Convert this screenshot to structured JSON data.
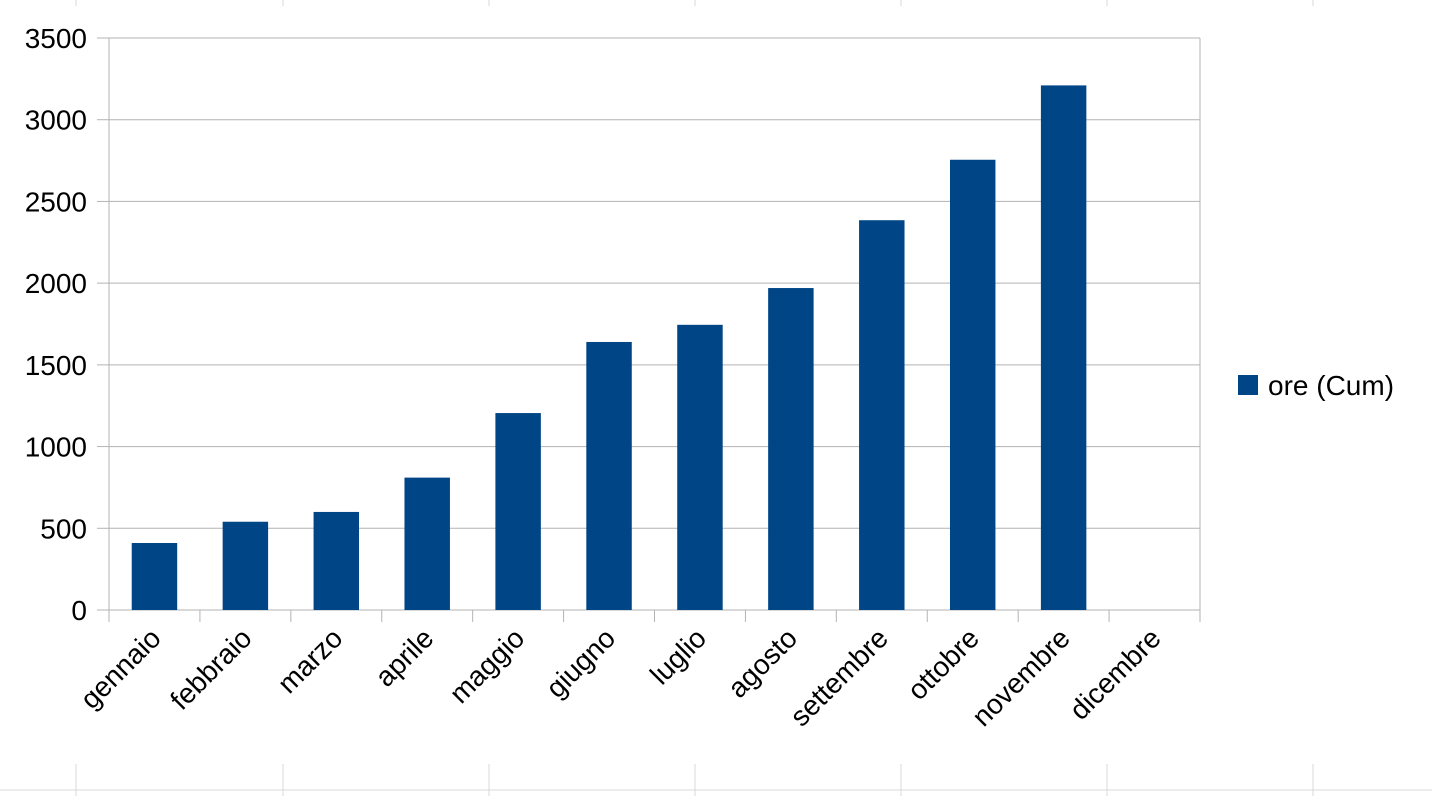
{
  "chart_data": {
    "type": "bar",
    "categories": [
      "gennaio",
      "febbraio",
      "marzo",
      "aprile",
      "maggio",
      "giugno",
      "luglio",
      "agosto",
      "settembre",
      "ottobre",
      "novembre",
      "dicembre"
    ],
    "series": [
      {
        "name": "ore (Cum)",
        "values": [
          410,
          540,
          600,
          810,
          1205,
          1640,
          1745,
          1970,
          2385,
          2755,
          3210,
          null
        ],
        "color": "#004586"
      }
    ],
    "title": "",
    "xlabel": "",
    "ylabel": "",
    "ylim": [
      0,
      3500
    ],
    "yticks": [
      0,
      500,
      1000,
      1500,
      2000,
      2500,
      3000,
      3500
    ],
    "grid": true,
    "legend": "right"
  },
  "colors": {
    "gridline": "#b3b3b3",
    "background": "#ffffff"
  }
}
